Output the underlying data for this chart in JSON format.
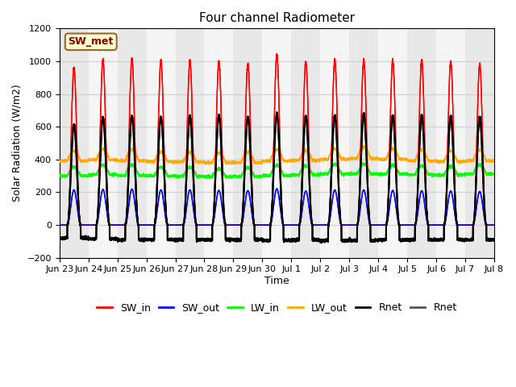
{
  "title": "Four channel Radiometer",
  "xlabel": "Time",
  "ylabel": "Solar Radiation (W/m2)",
  "ylim": [
    -200,
    1200
  ],
  "yticks": [
    -200,
    0,
    200,
    400,
    600,
    800,
    1000,
    1200
  ],
  "xtick_labels": [
    "Jun 23",
    "Jun 24",
    "Jun 25",
    "Jun 26",
    "Jun 27",
    "Jun 28",
    "Jun 29",
    "Jun 30",
    "Jul 1",
    "Jul 2",
    "Jul 3",
    "Jul 4",
    "Jul 5",
    "Jul 6",
    "Jul 7",
    "Jul 8"
  ],
  "colors": {
    "SW_in": "#ff0000",
    "SW_out": "#0000ff",
    "LW_in": "#00ff00",
    "LW_out": "#ffaa00",
    "Rnet_black": "#000000",
    "Rnet_dark": "#555555"
  },
  "legend_label": "SW_met",
  "legend_box_facecolor": "#ffffcc",
  "legend_box_edgecolor": "#996633",
  "plot_bg": "#ffffff",
  "grid_color": "#d0d0d0",
  "n_days": 15,
  "points_per_day": 288,
  "SW_in_peaks": [
    960,
    1010,
    1020,
    1005,
    1005,
    1000,
    985,
    1040,
    1000,
    1005,
    1010,
    1005,
    1005,
    1000,
    985
  ],
  "SW_out_peaks": [
    215,
    218,
    220,
    215,
    215,
    212,
    210,
    222,
    208,
    215,
    215,
    212,
    210,
    208,
    205
  ],
  "LW_in_base": [
    300,
    308,
    303,
    300,
    298,
    295,
    296,
    302,
    307,
    312,
    312,
    311,
    307,
    306,
    312
  ],
  "LW_in_peak_add": [
    55,
    60,
    65,
    55,
    55,
    50,
    55,
    65,
    55,
    60,
    60,
    55,
    55,
    55,
    55
  ],
  "LW_out_base": [
    392,
    398,
    393,
    387,
    385,
    381,
    381,
    392,
    396,
    402,
    407,
    402,
    392,
    387,
    392
  ],
  "LW_out_peak_add": [
    60,
    65,
    70,
    60,
    60,
    60,
    65,
    70,
    60,
    65,
    70,
    65,
    65,
    65,
    65
  ],
  "Rnet_peaks": [
    615,
    660,
    665,
    660,
    665,
    670,
    660,
    680,
    665,
    670,
    680,
    670,
    670,
    665,
    660
  ],
  "Rnet_night": [
    -80,
    -85,
    -90,
    -90,
    -90,
    -90,
    -90,
    -95,
    -90,
    -95,
    -95,
    -90,
    -90,
    -90,
    -90
  ],
  "day_start": 0.27,
  "day_end": 0.73,
  "peak_sharpness": 4.0
}
